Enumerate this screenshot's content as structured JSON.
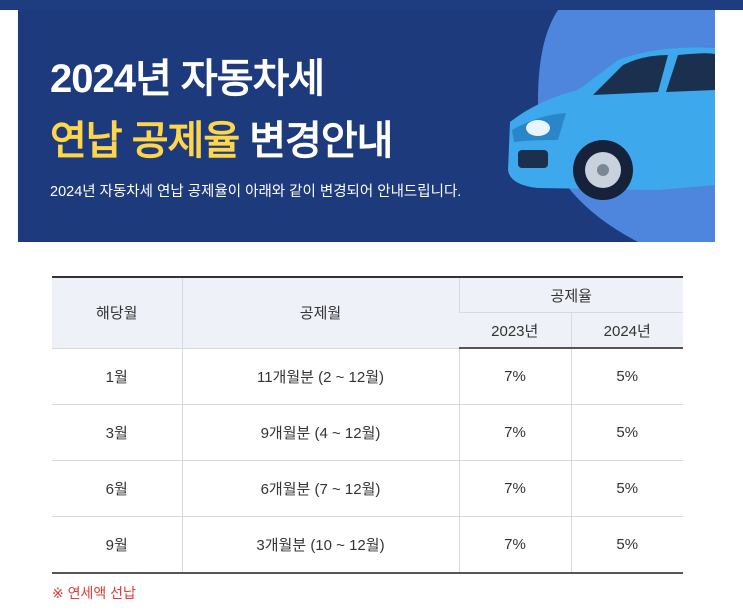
{
  "banner": {
    "title_line1": "2024년 자동차세",
    "title_line2_highlight": "연납 공제율",
    "title_line2_rest": "변경안내",
    "subtitle": "2024년 자동차세 연납 공제율이 아래와 같이 변경되어 안내드립니다."
  },
  "table": {
    "header": {
      "month": "해당월",
      "deduction_period": "공제월",
      "rate_group": "공제율",
      "rate_2023": "2023년",
      "rate_2024": "2024년"
    },
    "rows": [
      [
        "1월",
        "11개월분 (2 ~ 12월)",
        "7%",
        "5%"
      ],
      [
        "3월",
        "9개월분 (4 ~ 12월)",
        "7%",
        "5%"
      ],
      [
        "6월",
        "6개월분 (7 ~ 12월)",
        "7%",
        "5%"
      ],
      [
        "9월",
        "3개월분 (10 ~ 12월)",
        "7%",
        "5%"
      ]
    ]
  },
  "footnote": "※ 연세액 선납"
}
